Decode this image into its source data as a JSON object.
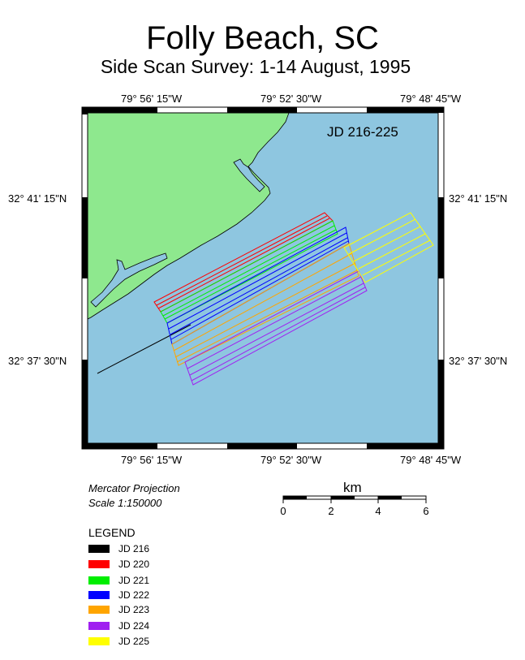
{
  "title": "Folly Beach, SC",
  "subtitle": "Side Scan Survey: 1-14 August, 1995",
  "map_label": "JD 216-225",
  "top_lon_labels": [
    "79° 56' 15\"W",
    "79° 52' 30\"W",
    "79° 48' 45\"W"
  ],
  "bottom_lon_labels": [
    "79° 56' 15\"W",
    "79° 52' 30\"W",
    "79° 48' 45\"W"
  ],
  "left_lat_labels": [
    "32° 41' 15\"N",
    "32° 37' 30\"N"
  ],
  "right_lat_labels": [
    "32° 41' 15\"N",
    "32° 37' 30\"N"
  ],
  "projection": "Mercator Projection",
  "scale_text": "Scale 1:150000",
  "scalebar": {
    "unit": "km",
    "ticks": [
      "0",
      "2",
      "4",
      "6"
    ]
  },
  "legend": {
    "title": "LEGEND",
    "items": [
      {
        "label": "JD 216",
        "color": "#000000"
      },
      {
        "label": "JD 220",
        "color": "#ff0000"
      },
      {
        "label": "JD 221",
        "color": "#00ee00"
      },
      {
        "label": "JD 222",
        "color": "#0000ff"
      },
      {
        "label": "JD 223",
        "color": "#ffa500"
      },
      {
        "label": "JD 224",
        "color": "#a020f0"
      },
      {
        "label": "JD 225",
        "color": "#ffff00"
      }
    ]
  },
  "colors": {
    "land": "#8ee88e",
    "water": "#8ec6e0"
  }
}
